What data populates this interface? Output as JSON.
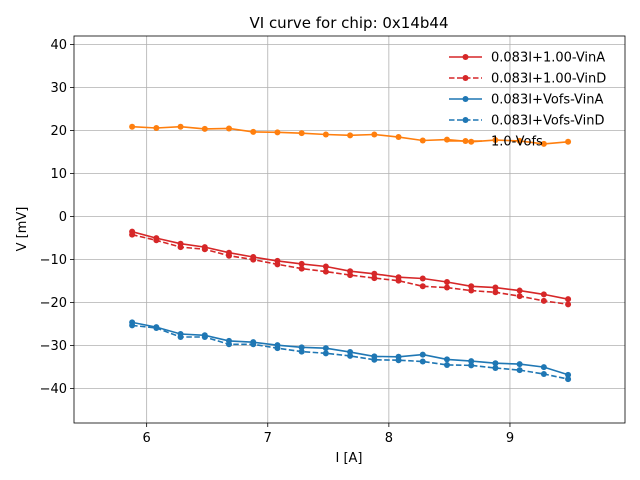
{
  "chart_data": {
    "type": "line",
    "title": "VI curve for chip: 0x14b44",
    "xlabel": "I [A]",
    "ylabel": "V [mV]",
    "xlim": [
      5.4,
      9.95
    ],
    "ylim": [
      -48,
      42
    ],
    "xticks": [
      6,
      7,
      8,
      9
    ],
    "yticks": [
      -40,
      -30,
      -20,
      -10,
      0,
      10,
      20,
      30,
      40
    ],
    "grid": true,
    "legend_position": "top-right",
    "x": [
      5.88,
      6.08,
      6.28,
      6.48,
      6.68,
      6.88,
      7.08,
      7.28,
      7.48,
      7.68,
      7.88,
      8.08,
      8.28,
      8.48,
      8.68,
      8.88,
      9.08,
      9.28,
      9.48
    ],
    "series": [
      {
        "name": "0.083I+1.00-VinA",
        "color": "#d62728",
        "style": "solid",
        "values": [
          -3.5,
          -5.0,
          -6.3,
          -7.1,
          -8.4,
          -9.4,
          -10.3,
          -11.0,
          -11.6,
          -12.7,
          -13.3,
          -14.1,
          -14.4,
          -15.2,
          -16.2,
          -16.5,
          -17.2,
          -18.1,
          -19.2
        ]
      },
      {
        "name": "0.083I+1.00-VinD",
        "color": "#d62728",
        "style": "dashed",
        "values": [
          -4.2,
          -5.5,
          -7.1,
          -7.6,
          -9.1,
          -10.0,
          -11.1,
          -12.1,
          -12.8,
          -13.6,
          -14.3,
          -14.9,
          -16.2,
          -16.5,
          -17.2,
          -17.6,
          -18.5,
          -19.6,
          -20.4
        ]
      },
      {
        "name": "0.083I+Vofs-VinA",
        "color": "#1f77b4",
        "style": "solid",
        "values": [
          -24.6,
          -25.7,
          -27.3,
          -27.6,
          -28.9,
          -29.2,
          -29.9,
          -30.4,
          -30.6,
          -31.5,
          -32.5,
          -32.6,
          -32.1,
          -33.2,
          -33.6,
          -34.1,
          -34.3,
          -35.0,
          -36.8
        ]
      },
      {
        "name": "0.083I+Vofs-VinD",
        "color": "#1f77b4",
        "style": "dashed",
        "values": [
          -25.3,
          -25.9,
          -28.0,
          -28.0,
          -29.7,
          -29.7,
          -30.6,
          -31.4,
          -31.8,
          -32.4,
          -33.3,
          -33.4,
          -33.7,
          -34.5,
          -34.6,
          -35.2,
          -35.7,
          -36.6,
          -37.8
        ]
      },
      {
        "name": "1.0-Vofs",
        "color": "#ff7f0e",
        "style": "solid",
        "values": [
          20.9,
          20.6,
          20.9,
          20.4,
          20.5,
          19.7,
          19.6,
          19.4,
          19.1,
          18.9,
          19.1,
          18.5,
          17.7,
          17.9,
          17.4,
          17.8,
          17.6,
          16.9,
          17.4
        ]
      }
    ]
  }
}
